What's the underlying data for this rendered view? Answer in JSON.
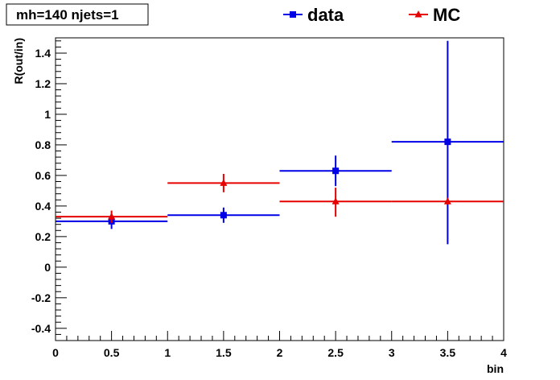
{
  "chart_data": {
    "type": "scatter",
    "title": "mh=140 njets=1",
    "xlabel": "bin",
    "ylabel": "R(out/in)",
    "xlim": [
      0,
      4
    ],
    "ylim": [
      -0.48,
      1.5
    ],
    "xticks": [
      0,
      0.5,
      1,
      1.5,
      2,
      2.5,
      3,
      3.5,
      4
    ],
    "xtick_labels": [
      "0",
      "0.5",
      "1",
      "1.5",
      "2",
      "2.5",
      "3",
      "3.5",
      "4"
    ],
    "yticks": [
      -0.4,
      -0.2,
      0,
      0.2,
      0.4,
      0.6,
      0.8,
      1,
      1.2,
      1.4
    ],
    "ytick_labels": [
      "-0.4",
      "-0.2",
      "0",
      "0.2",
      "0.4",
      "0.6",
      "0.8",
      "1",
      "1.2",
      "1.4"
    ],
    "grid": false,
    "legend_position": "top",
    "series": [
      {
        "name": "data",
        "color": "#0000e6",
        "marker": "square",
        "points": [
          {
            "x": 0.5,
            "y": 0.3,
            "xerr": 0.5,
            "ylo": 0.25,
            "yhi": 0.34
          },
          {
            "x": 1.5,
            "y": 0.34,
            "xerr": 0.5,
            "ylo": 0.29,
            "yhi": 0.39
          },
          {
            "x": 2.5,
            "y": 0.63,
            "xerr": 0.5,
            "ylo": 0.53,
            "yhi": 0.73
          },
          {
            "x": 3.5,
            "y": 0.82,
            "xerr": 0.5,
            "ylo": 0.15,
            "yhi": 1.48
          }
        ]
      },
      {
        "name": "MC",
        "color": "#e60000",
        "marker": "triangle",
        "points": [
          {
            "x": 0.5,
            "y": 0.33,
            "xerr": 0.5,
            "ylo": 0.29,
            "yhi": 0.37
          },
          {
            "x": 1.5,
            "y": 0.55,
            "xerr": 0.5,
            "ylo": 0.49,
            "yhi": 0.61
          },
          {
            "x": 2.5,
            "y": 0.43,
            "xerr": 0.5,
            "ylo": 0.33,
            "yhi": 0.52
          },
          {
            "x": 3.5,
            "y": 0.43,
            "xerr": 0.5,
            "ylo": 0.41,
            "yhi": 0.45
          }
        ]
      }
    ]
  }
}
